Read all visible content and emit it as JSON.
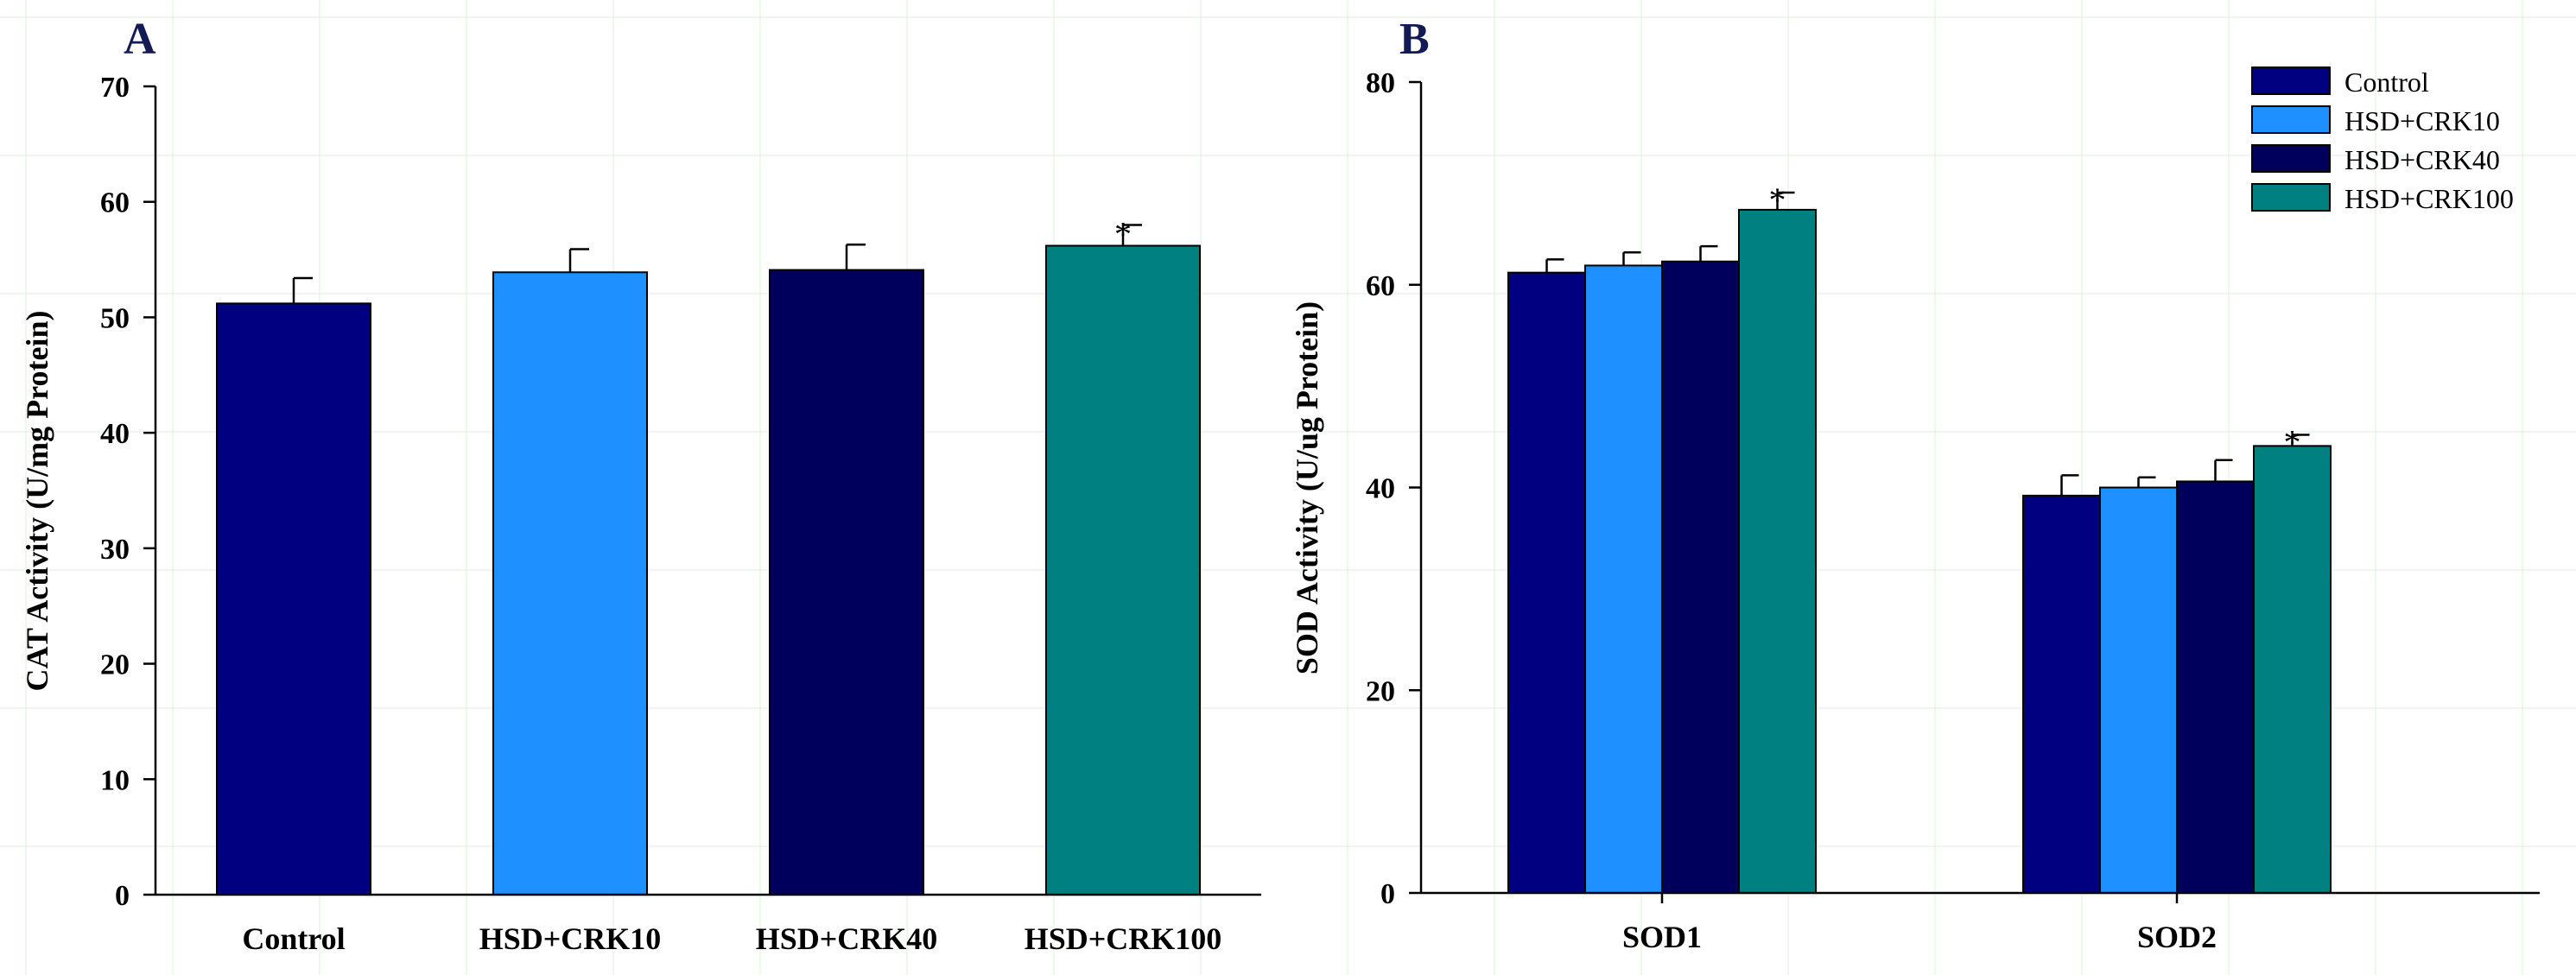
{
  "colors": {
    "control": "#000080",
    "crk10": "#1e90ff",
    "crk40": "#00005c",
    "crk100": "#008080"
  },
  "chart_data": [
    {
      "type": "bar",
      "panel_label": "A",
      "title": "",
      "xlabel": "",
      "ylabel": "CAT Activity (U/mg Protein)",
      "ylim": [
        0,
        70
      ],
      "yticks": [
        0,
        10,
        20,
        30,
        40,
        50,
        60,
        70
      ],
      "grid": true,
      "categories": [
        "Control",
        "HSD+CRK10",
        "HSD+CRK40",
        "HSD+CRK100"
      ],
      "values": [
        51.2,
        53.9,
        54.1,
        56.2
      ],
      "errors": [
        2.2,
        2.0,
        2.2,
        1.8
      ],
      "colors": [
        "#000080",
        "#1e90ff",
        "#00005c",
        "#008080"
      ],
      "annotations": [
        "",
        "",
        "",
        "*"
      ]
    },
    {
      "type": "bar",
      "panel_label": "B",
      "title": "",
      "xlabel": "",
      "ylabel": "SOD Activity (U/ug Protein)",
      "ylim": [
        0,
        80
      ],
      "yticks": [
        0,
        20,
        40,
        60,
        80
      ],
      "grid": true,
      "categories": [
        "SOD1",
        "SOD2"
      ],
      "legend_position": "top-right",
      "series": [
        {
          "name": "Control",
          "color": "#000080",
          "values": [
            61.2,
            39.2
          ],
          "errors": [
            1.3,
            2.0
          ],
          "annotations": [
            "",
            ""
          ]
        },
        {
          "name": "HSD+CRK10",
          "color": "#1e90ff",
          "values": [
            61.9,
            40.0
          ],
          "errors": [
            1.3,
            1.0
          ],
          "annotations": [
            "",
            ""
          ]
        },
        {
          "name": "HSD+CRK40",
          "color": "#00005c",
          "values": [
            62.3,
            40.6
          ],
          "errors": [
            1.5,
            2.1
          ],
          "annotations": [
            "",
            ""
          ]
        },
        {
          "name": "HSD+CRK100",
          "color": "#008080",
          "values": [
            67.4,
            44.1
          ],
          "errors": [
            1.7,
            1.1
          ],
          "annotations": [
            "*",
            "*"
          ]
        }
      ]
    }
  ]
}
